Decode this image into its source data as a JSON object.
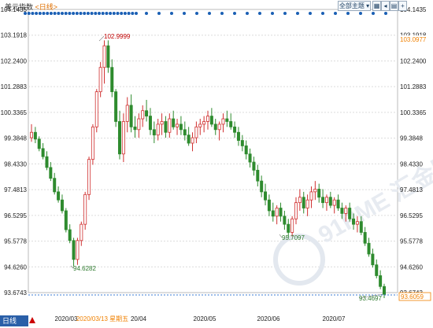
{
  "header": {
    "title": "美元指数",
    "period": "<日线>",
    "controls": [
      {
        "label": "全部主题",
        "type": "dropdown"
      },
      {
        "label": "",
        "type": "icon",
        "icon": "chart-icon"
      },
      {
        "label": "",
        "type": "icon",
        "icon": "prev-icon"
      },
      {
        "label": "",
        "type": "icon",
        "icon": "grid-icon"
      },
      {
        "label": "",
        "type": "icon",
        "icon": "zoom-in-icon"
      },
      {
        "label": "",
        "type": "icon",
        "icon": "zoom-out-icon"
      }
    ]
  },
  "bottom": {
    "period_label": "日线"
  },
  "colors": {
    "up": "#d03030",
    "down": "#2e8b2e",
    "grid": "#dcdcdc",
    "axis_text": "#222",
    "current_price": "#f08000",
    "dots": "#1a5fb4",
    "brand": "#2a5fa8"
  },
  "watermark": "91PME 汇金网",
  "chart_data": {
    "type": "candlestick",
    "title": "美元指数",
    "y_ticks": [
      104.1435,
      103.1918,
      102.24,
      101.2883,
      100.3365,
      99.3848,
      98.433,
      97.4813,
      96.5295,
      95.5778,
      94.626,
      93.6743
    ],
    "ylim": [
      93.6743,
      104.1435
    ],
    "x_labels": [
      "2020/03",
      "2020/03/13 星期五",
      "20/04",
      "2020/05",
      "2020/06",
      "2020/07"
    ],
    "highlighted_date": "2020/03/13 星期五",
    "price_labels": {
      "current": "103.0977",
      "last": "93.6059"
    },
    "annotations": [
      {
        "label": "102.9999",
        "type": "high"
      },
      {
        "label": "94.6282",
        "type": "low"
      },
      {
        "label": "95.7097",
        "type": "low"
      },
      {
        "label": "93.4697",
        "type": "low"
      }
    ],
    "candles": [
      [
        99.4,
        99.9,
        99.25,
        99.6
      ],
      [
        99.6,
        99.8,
        99.2,
        99.35
      ],
      [
        99.35,
        99.45,
        98.9,
        99.0
      ],
      [
        99.0,
        99.2,
        98.6,
        98.7
      ],
      [
        98.7,
        98.9,
        98.2,
        98.3
      ],
      [
        98.3,
        98.5,
        97.8,
        97.9
      ],
      [
        97.9,
        98.1,
        97.3,
        97.4
      ],
      [
        97.4,
        97.6,
        97.0,
        97.1
      ],
      [
        97.1,
        97.3,
        96.6,
        96.7
      ],
      [
        96.7,
        96.8,
        95.9,
        96.0
      ],
      [
        96.0,
        96.2,
        95.5,
        95.6
      ],
      [
        95.6,
        95.7,
        94.65,
        94.9
      ],
      [
        94.9,
        95.7,
        94.7,
        95.6
      ],
      [
        95.6,
        96.3,
        95.4,
        96.2
      ],
      [
        96.2,
        97.4,
        96.0,
        97.3
      ],
      [
        97.3,
        98.7,
        97.1,
        98.6
      ],
      [
        98.6,
        99.9,
        98.4,
        99.8
      ],
      [
        99.8,
        101.2,
        99.6,
        101.1
      ],
      [
        101.1,
        102.2,
        100.9,
        102.0
      ],
      [
        102.0,
        103.0,
        101.4,
        102.8
      ],
      [
        102.8,
        103.0,
        101.8,
        102.0
      ],
      [
        102.0,
        102.3,
        100.9,
        101.1
      ],
      [
        101.1,
        101.2,
        99.8,
        100.0
      ],
      [
        100.0,
        100.4,
        98.6,
        98.8
      ],
      [
        98.8,
        100.3,
        98.5,
        100.0
      ],
      [
        100.0,
        100.9,
        99.6,
        100.6
      ],
      [
        100.6,
        101.0,
        99.6,
        99.8
      ],
      [
        99.8,
        100.2,
        99.4,
        99.7
      ],
      [
        99.7,
        100.3,
        99.4,
        100.1
      ],
      [
        100.1,
        100.6,
        99.8,
        100.4
      ],
      [
        100.4,
        100.8,
        100.0,
        100.2
      ],
      [
        100.2,
        100.5,
        99.5,
        99.7
      ],
      [
        99.7,
        100.0,
        99.2,
        99.5
      ],
      [
        99.5,
        100.1,
        99.3,
        99.9
      ],
      [
        99.9,
        100.3,
        99.5,
        100.0
      ],
      [
        100.0,
        100.2,
        99.4,
        99.6
      ],
      [
        99.6,
        100.3,
        99.4,
        100.1
      ],
      [
        100.1,
        100.4,
        99.7,
        99.8
      ],
      [
        99.8,
        100.1,
        99.5,
        99.9
      ],
      [
        99.9,
        100.2,
        99.5,
        99.7
      ],
      [
        99.7,
        100.0,
        99.3,
        99.5
      ],
      [
        99.5,
        99.8,
        99.1,
        99.2
      ],
      [
        99.2,
        99.6,
        98.9,
        99.4
      ],
      [
        99.4,
        100.0,
        99.2,
        99.8
      ],
      [
        99.8,
        100.1,
        99.5,
        99.9
      ],
      [
        99.9,
        100.2,
        99.6,
        100.0
      ],
      [
        100.0,
        100.4,
        99.7,
        100.2
      ],
      [
        100.2,
        100.5,
        99.8,
        99.9
      ],
      [
        99.9,
        100.1,
        99.5,
        99.7
      ],
      [
        99.7,
        100.0,
        99.3,
        99.9
      ],
      [
        99.9,
        100.3,
        99.6,
        100.1
      ],
      [
        100.1,
        100.4,
        99.8,
        100.0
      ],
      [
        100.0,
        100.3,
        99.7,
        99.8
      ],
      [
        99.8,
        100.0,
        99.4,
        99.6
      ],
      [
        99.6,
        99.8,
        99.1,
        99.3
      ],
      [
        99.3,
        99.5,
        98.9,
        99.1
      ],
      [
        99.1,
        99.3,
        98.6,
        98.8
      ],
      [
        98.8,
        99.0,
        98.3,
        98.5
      ],
      [
        98.5,
        98.7,
        98.0,
        98.2
      ],
      [
        98.2,
        98.4,
        97.6,
        97.8
      ],
      [
        97.8,
        98.0,
        97.2,
        97.4
      ],
      [
        97.4,
        97.7,
        96.9,
        97.1
      ],
      [
        97.1,
        97.3,
        96.5,
        96.7
      ],
      [
        96.7,
        97.0,
        96.3,
        96.5
      ],
      [
        96.5,
        96.9,
        96.2,
        96.8
      ],
      [
        96.8,
        97.0,
        96.3,
        96.5
      ],
      [
        96.5,
        96.7,
        96.0,
        96.2
      ],
      [
        96.2,
        96.4,
        95.7,
        95.9
      ],
      [
        95.9,
        96.5,
        95.75,
        96.4
      ],
      [
        96.4,
        97.2,
        96.2,
        97.0
      ],
      [
        97.0,
        97.5,
        96.7,
        97.2
      ],
      [
        97.2,
        97.4,
        96.6,
        96.8
      ],
      [
        96.8,
        97.3,
        96.5,
        97.1
      ],
      [
        97.1,
        97.6,
        96.8,
        97.4
      ],
      [
        97.4,
        97.8,
        97.1,
        97.5
      ],
      [
        97.5,
        97.7,
        97.0,
        97.2
      ],
      [
        97.2,
        97.5,
        96.8,
        97.0
      ],
      [
        97.0,
        97.3,
        96.7,
        97.2
      ],
      [
        97.2,
        97.4,
        96.8,
        96.9
      ],
      [
        96.9,
        97.2,
        96.6,
        97.1
      ],
      [
        97.1,
        97.3,
        96.7,
        96.8
      ],
      [
        96.8,
        97.0,
        96.4,
        96.6
      ],
      [
        96.6,
        96.9,
        96.3,
        96.8
      ],
      [
        96.8,
        97.0,
        96.3,
        96.4
      ],
      [
        96.4,
        96.6,
        96.0,
        96.2
      ],
      [
        96.2,
        96.5,
        95.9,
        96.3
      ],
      [
        96.3,
        96.5,
        95.8,
        95.9
      ],
      [
        95.9,
        96.1,
        95.4,
        95.5
      ],
      [
        95.5,
        95.7,
        95.0,
        95.1
      ],
      [
        95.1,
        95.3,
        94.6,
        94.7
      ],
      [
        94.7,
        94.9,
        94.2,
        94.3
      ],
      [
        94.3,
        94.5,
        93.8,
        93.9
      ],
      [
        93.9,
        94.0,
        93.47,
        93.61
      ]
    ]
  }
}
